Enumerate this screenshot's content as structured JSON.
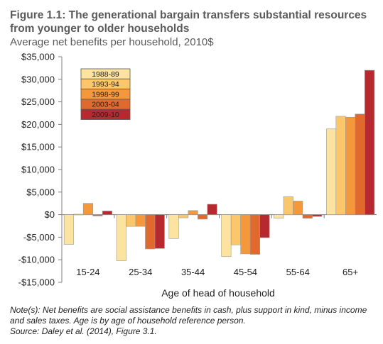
{
  "title": "Figure 1.1: The generational bargain transfers substantial resources from younger to older households",
  "subtitle": "Average net benefits per household, 2010$",
  "notes": [
    "Note(s): Net benefits are social assistance benefits in cash, plus support in kind, minus income and sales taxes. Age is by age of household reference person.",
    "Source: Daley et al. (2014), Figure 3.1."
  ],
  "colors": {
    "1988-89": "#fde3a0",
    "1993-94": "#fcc76a",
    "1998-99": "#f5983c",
    "2003-04": "#e06a2e",
    "2009-10": "#b62a2f"
  },
  "chart_data": {
    "type": "bar",
    "categories": [
      "15-24",
      "25-34",
      "35-44",
      "45-54",
      "55-64",
      "65+"
    ],
    "series": [
      {
        "name": "1988-89",
        "values": [
          -6600,
          -10200,
          -5300,
          -9300,
          -800,
          19000
        ]
      },
      {
        "name": "1993-94",
        "values": [
          100,
          -2600,
          -700,
          -6700,
          4000,
          21800
        ]
      },
      {
        "name": "1998-99",
        "values": [
          2500,
          -2600,
          900,
          -8700,
          3000,
          21600
        ]
      },
      {
        "name": "2003-04",
        "values": [
          -300,
          -7600,
          -1000,
          -8800,
          -800,
          22300
        ]
      },
      {
        "name": "2009-10",
        "values": [
          800,
          -7500,
          2300,
          -5100,
          -400,
          32000
        ]
      }
    ],
    "xlabel": "Age of head of household",
    "ylabel": "",
    "ylim": [
      -15000,
      35000
    ],
    "yticks": [
      {
        "value": 35000,
        "label": "$35,000"
      },
      {
        "value": 30000,
        "label": "$30,000"
      },
      {
        "value": 25000,
        "label": "$25,000"
      },
      {
        "value": 20000,
        "label": "$20,000"
      },
      {
        "value": 15000,
        "label": "$15,000"
      },
      {
        "value": 10000,
        "label": "$10,000"
      },
      {
        "value": 5000,
        "label": "$5,000"
      },
      {
        "value": 0,
        "label": "$0"
      },
      {
        "value": -5000,
        "label": "-$5,000"
      },
      {
        "value": -10000,
        "label": "-$10,000"
      },
      {
        "value": -15000,
        "label": "-$15,000"
      }
    ],
    "grid": false,
    "legend_position": "top-left"
  }
}
